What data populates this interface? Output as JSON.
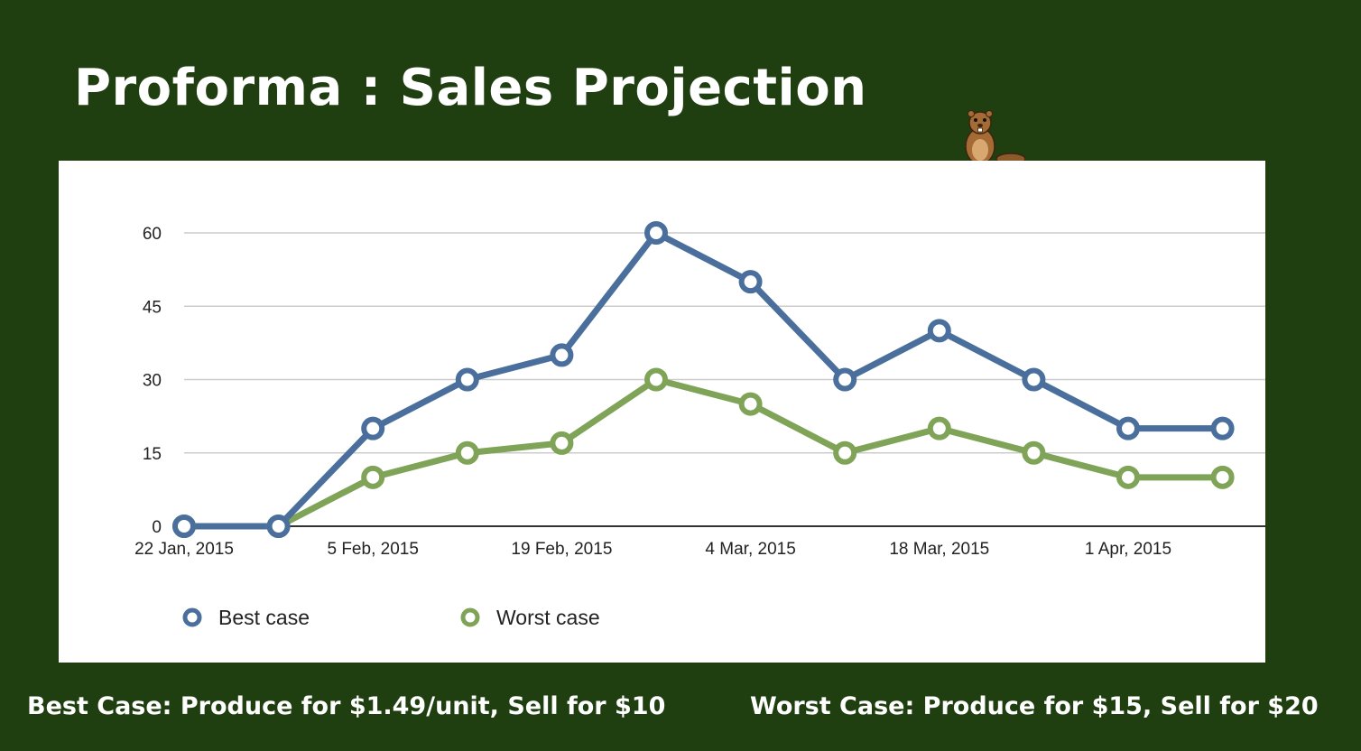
{
  "slide": {
    "title": "Proforma : Sales Projection",
    "notes": {
      "left": "Best Case: Produce for $1.49/unit, Sell for $10",
      "right": "Worst Case: Produce for $15, Sell for $20"
    }
  },
  "colors": {
    "background": "#1f3f10",
    "panel": "#ffffff",
    "best": "#4a6f9c",
    "worst": "#7fa357",
    "grid": "#cccccc",
    "axis": "#333333"
  },
  "mascot": {
    "icon": "beaver-icon"
  },
  "chart_data": {
    "type": "line",
    "title": "",
    "xlabel": "",
    "ylabel": "",
    "x": [
      "2015-01-22",
      "2015-01-29",
      "2015-02-05",
      "2015-02-12",
      "2015-02-19",
      "2015-02-26",
      "2015-03-04",
      "2015-03-11",
      "2015-03-18",
      "2015-03-25",
      "2015-04-01",
      "2015-04-08"
    ],
    "x_tick_labels": [
      {
        "x": "2015-01-22",
        "label": "22 Jan, 2015"
      },
      {
        "x": "2015-02-05",
        "label": "5 Feb, 2015"
      },
      {
        "x": "2015-02-19",
        "label": "19 Feb, 2015"
      },
      {
        "x": "2015-03-04",
        "label": "4 Mar, 2015"
      },
      {
        "x": "2015-03-18",
        "label": "18 Mar, 2015"
      },
      {
        "x": "2015-04-01",
        "label": "1 Apr, 2015"
      }
    ],
    "ylim": [
      0,
      60
    ],
    "y_ticks": [
      0,
      15,
      30,
      45,
      60
    ],
    "grid": true,
    "legend_position": "bottom-left",
    "series": [
      {
        "name": "Best case",
        "color": "#4a6f9c",
        "values": [
          0,
          0,
          20,
          30,
          35,
          60,
          50,
          30,
          40,
          30,
          20,
          20
        ]
      },
      {
        "name": "Worst case",
        "color": "#7fa357",
        "values": [
          0,
          0,
          10,
          15,
          17,
          30,
          25,
          15,
          20,
          15,
          10,
          10
        ]
      }
    ]
  }
}
